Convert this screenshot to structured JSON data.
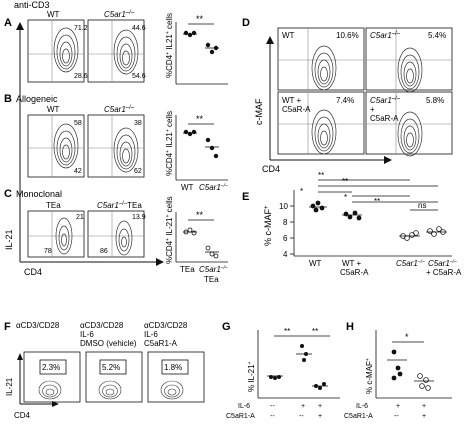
{
  "panel_labels": [
    "A",
    "B",
    "C",
    "D",
    "E",
    "F",
    "G",
    "H"
  ],
  "top_left_title": "anti-CD3",
  "axis": {
    "il21": "IL-21",
    "cd4": "CD4",
    "cmaf": "c-MAF"
  },
  "row_a": {
    "flow": [
      {
        "title": "WT",
        "q_top": "71.2",
        "q_bottom": "28.6"
      },
      {
        "title": "C5ar1",
        "sup": "–/–",
        "q_top": "44.6",
        "q_bottom": "54.6"
      }
    ],
    "plot": {
      "ylabel": "%CD4+ IL21+ cells",
      "sig": "**"
    }
  },
  "row_b": {
    "label": "Allogeneic",
    "flow": [
      {
        "title": "WT",
        "q_top": "58",
        "q_bottom": "42"
      },
      {
        "title": "C5ar1",
        "sup": "–/–",
        "q_top": "38",
        "q_bottom": "62"
      }
    ],
    "plot": {
      "ylabel": "%CD4+ IL21+ cells",
      "sig": "**",
      "xticks": [
        "WT",
        "C5ar1"
      ],
      "xsup": "–/–"
    }
  },
  "row_c": {
    "label": "Monoclonal",
    "flow": [
      {
        "title": "TEa",
        "q_top": "21",
        "q_bottom": "78"
      },
      {
        "title": "C5ar1",
        "sup": "–/–",
        "title_suffix": "TEa",
        "q_top": "13.9",
        "q_bottom": "86"
      }
    ],
    "plot": {
      "ylabel": "%CD4+ IL-21+ cells",
      "sig": "**",
      "xticks": [
        "TEa",
        "C5ar1"
      ],
      "xsup": "–/–",
      "xsub": "TEa"
    }
  },
  "panel_d": {
    "cells": [
      {
        "title": "WT",
        "pct": "10.6%"
      },
      {
        "title": "C5ar1",
        "sup": "–/–",
        "pct": "5.4%"
      },
      {
        "title": "WT +",
        "title2": "C5aR-A",
        "pct": "7.4%"
      },
      {
        "title": "C5ar1",
        "sup": "–/–",
        "title2": "+",
        "title3": "C5aR-A",
        "pct": "5.8%"
      }
    ]
  },
  "panel_e": {
    "ylabel": "% c-MAF+",
    "yticks": [
      "10",
      "8",
      "6",
      "4"
    ],
    "groups": [
      {
        "label": "WT",
        "label2": ""
      },
      {
        "label": "WT +",
        "label2": "C5aR-A"
      },
      {
        "label": "C5ar1",
        "sup": "–/–",
        "label2": ""
      },
      {
        "label": "C5ar1",
        "sup": "–/–",
        "label2": "+ C5aR-A"
      }
    ],
    "brackets": [
      "*",
      "**",
      "*",
      "**",
      "**",
      "ns"
    ]
  },
  "panel_f": {
    "conditions": [
      {
        "line1": "αCD3/CD28",
        "line2": "",
        "line3": "",
        "pct": "2.3%"
      },
      {
        "line1": "αCD3/CD28",
        "line2": "IL-6",
        "line3": "DMSO (vehicle)",
        "pct": "5.2%"
      },
      {
        "line1": "αCD3/CD28",
        "line2": "IL-6",
        "line3": "C5aR1-A",
        "pct": "1.8%"
      }
    ]
  },
  "panel_g": {
    "ylabel": "% IL-21+",
    "sig": [
      "**",
      "**"
    ],
    "rows": [
      {
        "label": "IL-6",
        "values": [
          "--",
          "+",
          "+"
        ]
      },
      {
        "label": "C5aR1-A",
        "values": [
          "--",
          "--",
          "+"
        ]
      }
    ]
  },
  "panel_h": {
    "ylabel": "% c-MAF+",
    "sig": "*",
    "rows": [
      {
        "label": "IL-6",
        "values": [
          "+",
          "+"
        ]
      },
      {
        "label": "C5aR1-A",
        "values": [
          "--",
          "+"
        ]
      }
    ]
  }
}
